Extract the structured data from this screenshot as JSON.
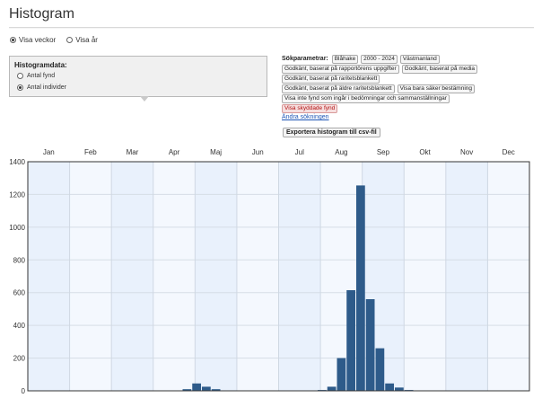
{
  "page": {
    "title": "Histogram"
  },
  "view_toggle": {
    "weeks_label": "Visa veckor",
    "years_label": "Visa år",
    "selected": "weeks"
  },
  "histogram_data": {
    "heading": "Histogramdata:",
    "options": [
      {
        "label": "Antal fynd",
        "selected": false
      },
      {
        "label": "Antal individer",
        "selected": true
      }
    ]
  },
  "search_params": {
    "label": "Sökparametrar:",
    "rows": [
      [
        "Blåhake",
        "2000 - 2024",
        "Västmanland"
      ],
      [
        "Godkänt, baserat på rapportörens uppgifter",
        "Godkänt, baserat på media"
      ],
      [
        "Godkänt, baserat på raritetsblankett"
      ],
      [
        "Godkänt, baserat på äldre raritetsblankett",
        "Visa bara säker bestämning"
      ],
      [
        "Visa inte fynd som ingår i bedömningar och sammanställningar"
      ]
    ],
    "highlight": "Visa skyddade fynd",
    "change_link": "Ändra sökningen",
    "export_button": "Exportera histogram till csv-fil"
  },
  "chart_data": {
    "type": "bar",
    "months": [
      "Jan",
      "Feb",
      "Mar",
      "Apr",
      "Maj",
      "Jun",
      "Jul",
      "Aug",
      "Sep",
      "Okt",
      "Nov",
      "Dec"
    ],
    "ylim": [
      0,
      1400
    ],
    "yticks": [
      "0",
      "200",
      "400",
      "600",
      "800",
      "1000",
      "1200",
      "1400"
    ],
    "grid": true,
    "bar_color": "#2e5b8a",
    "weeks": [
      1,
      2,
      3,
      4,
      5,
      6,
      7,
      8,
      9,
      10,
      11,
      12,
      13,
      14,
      15,
      16,
      17,
      18,
      19,
      20,
      21,
      22,
      23,
      24,
      25,
      26,
      27,
      28,
      29,
      30,
      31,
      32,
      33,
      34,
      35,
      36,
      37,
      38,
      39,
      40,
      41,
      42,
      43,
      44,
      45,
      46,
      47,
      48,
      49,
      50,
      51,
      52
    ],
    "values": [
      0,
      0,
      0,
      0,
      0,
      0,
      0,
      0,
      0,
      0,
      0,
      0,
      0,
      0,
      0,
      0,
      10,
      45,
      25,
      10,
      0,
      0,
      0,
      0,
      0,
      0,
      0,
      0,
      0,
      0,
      5,
      25,
      200,
      615,
      1255,
      560,
      260,
      45,
      20,
      5,
      0,
      0,
      0,
      0,
      0,
      0,
      0,
      0,
      0,
      0,
      0,
      0
    ]
  }
}
